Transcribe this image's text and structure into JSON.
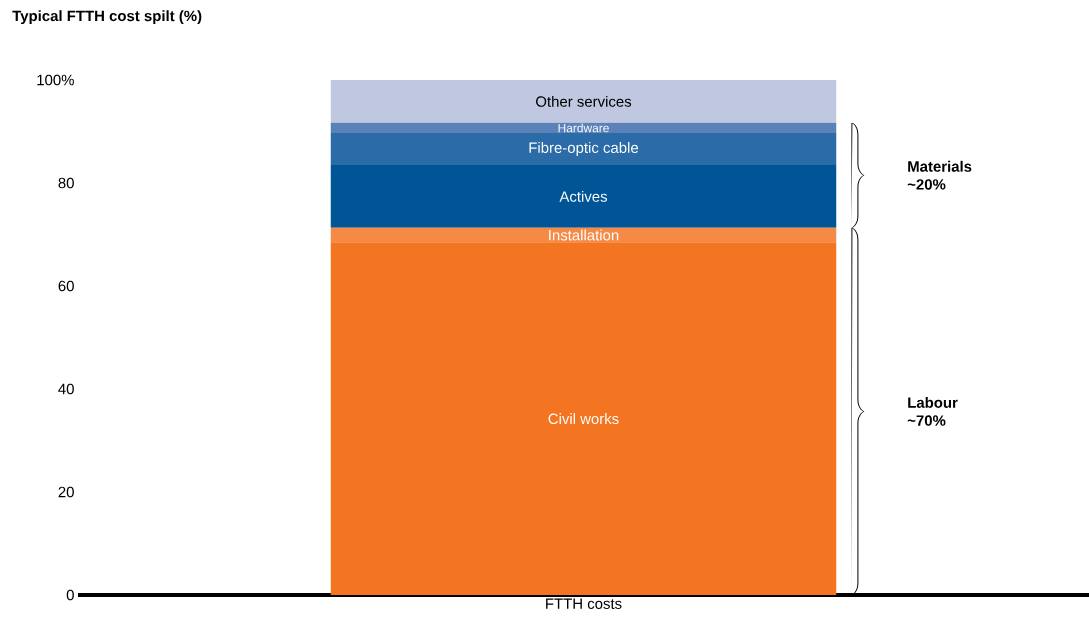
{
  "chart_data": {
    "type": "bar",
    "stacked": true,
    "title": "Typical FTTH cost spilt (%)",
    "categories": [
      "FTTH costs"
    ],
    "series": [
      {
        "name": "Civil works",
        "color": "#f47521",
        "values": [
          68.5
        ]
      },
      {
        "name": "Installation",
        "color": "#f58a47",
        "values": [
          2.8
        ]
      },
      {
        "name": "Actives",
        "color": "#005596",
        "values": [
          12.2
        ]
      },
      {
        "name": "Fibre-optic cable",
        "color": "#2b6ba8",
        "values": [
          6.2
        ]
      },
      {
        "name": "Hardware",
        "color": "#5b82b8",
        "values": [
          2.0
        ]
      },
      {
        "name": "Other services",
        "color": "#bfc8e0",
        "values": [
          8.3
        ]
      }
    ],
    "ylim": [
      0,
      100
    ],
    "yticks": [
      0,
      20,
      40,
      60,
      80,
      {
        "value": 100,
        "label": "100%"
      }
    ],
    "annotations": [
      "Materials ~20%",
      "Labour ~70%"
    ]
  }
}
